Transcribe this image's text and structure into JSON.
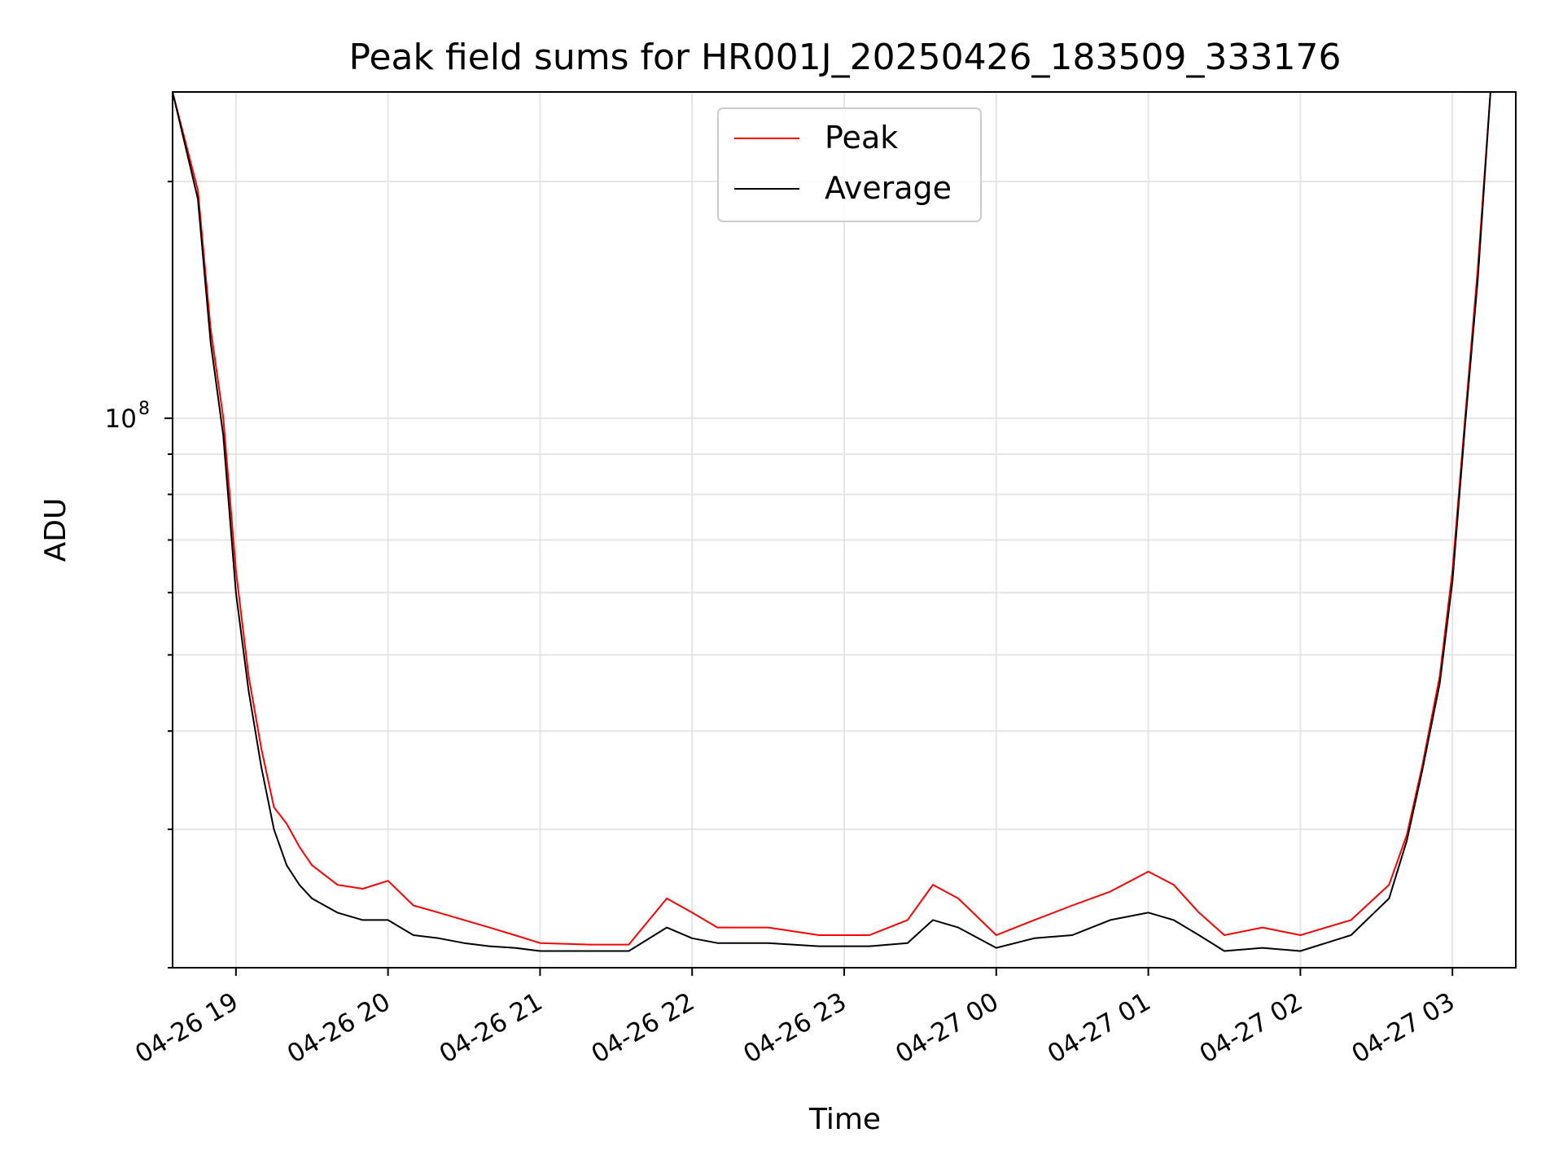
{
  "chart_data": {
    "type": "line",
    "title": "Peak field sums for HR001J_20250426_183509_333176",
    "xlabel": "Time",
    "ylabel": "ADU",
    "y_scale": "log",
    "grid": true,
    "legend_position": "top-center",
    "x_tick_labels": [
      "04-26 19",
      "04-26 20",
      "04-26 21",
      "04-26 22",
      "04-26 23",
      "04-27 00",
      "04-27 01",
      "04-27 02",
      "04-27 03"
    ],
    "y_tick_labels": [
      {
        "base": "10",
        "exponent": "8"
      }
    ],
    "xlim": [
      "2025-04-26 18:35",
      "2025-04-27 03:25"
    ],
    "ylim": [
      20000000.0,
      260000000.0
    ],
    "series": [
      {
        "name": "Peak",
        "color": "#ff0000",
        "x": [
          "2025-04-26 18:35",
          "2025-04-26 18:45",
          "2025-04-26 18:50",
          "2025-04-26 18:55",
          "2025-04-26 19:00",
          "2025-04-26 19:05",
          "2025-04-26 19:10",
          "2025-04-26 19:15",
          "2025-04-26 19:20",
          "2025-04-26 19:25",
          "2025-04-26 19:30",
          "2025-04-26 19:40",
          "2025-04-26 19:50",
          "2025-04-26 20:00",
          "2025-04-26 20:10",
          "2025-04-26 20:20",
          "2025-04-26 20:30",
          "2025-04-26 20:40",
          "2025-04-26 20:50",
          "2025-04-26 21:00",
          "2025-04-26 21:20",
          "2025-04-26 21:35",
          "2025-04-26 21:50",
          "2025-04-26 22:00",
          "2025-04-26 22:10",
          "2025-04-26 22:30",
          "2025-04-26 22:50",
          "2025-04-26 23:10",
          "2025-04-26 23:25",
          "2025-04-26 23:35",
          "2025-04-26 23:45",
          "2025-04-27 00:00",
          "2025-04-27 00:15",
          "2025-04-27 00:30",
          "2025-04-27 00:45",
          "2025-04-27 01:00",
          "2025-04-27 01:10",
          "2025-04-27 01:20",
          "2025-04-27 01:30",
          "2025-04-27 01:45",
          "2025-04-27 02:00",
          "2025-04-27 02:20",
          "2025-04-27 02:35",
          "2025-04-27 02:42",
          "2025-04-27 02:48",
          "2025-04-27 02:55",
          "2025-04-27 03:00",
          "2025-04-27 03:05",
          "2025-04-27 03:10",
          "2025-04-27 03:15"
        ],
        "y": [
          260000000.0,
          195000000.0,
          130000000.0,
          100000000.0,
          64000000.0,
          47000000.0,
          38000000.0,
          32000000.0,
          30500000.0,
          28500000.0,
          27000000.0,
          25500000.0,
          25200000.0,
          25800000.0,
          24000000.0,
          23500000.0,
          23000000.0,
          22500000.0,
          22000000.0,
          21500000.0,
          21400000.0,
          21400000.0,
          24500000.0,
          23500000.0,
          22500000.0,
          22500000.0,
          22000000.0,
          22000000.0,
          23000000.0,
          25500000.0,
          24500000.0,
          22000000.0,
          23000000.0,
          24000000.0,
          25000000.0,
          26500000.0,
          25500000.0,
          23500000.0,
          22000000.0,
          22500000.0,
          22000000.0,
          23000000.0,
          25500000.0,
          29500000.0,
          36000000.0,
          47000000.0,
          64000000.0,
          100000000.0,
          155000000.0,
          260000000.0
        ]
      },
      {
        "name": "Average",
        "color": "#000000",
        "x": [
          "2025-04-26 18:35",
          "2025-04-26 18:45",
          "2025-04-26 18:50",
          "2025-04-26 18:55",
          "2025-04-26 19:00",
          "2025-04-26 19:05",
          "2025-04-26 19:10",
          "2025-04-26 19:15",
          "2025-04-26 19:20",
          "2025-04-26 19:25",
          "2025-04-26 19:30",
          "2025-04-26 19:40",
          "2025-04-26 19:50",
          "2025-04-26 20:00",
          "2025-04-26 20:10",
          "2025-04-26 20:20",
          "2025-04-26 20:30",
          "2025-04-26 20:40",
          "2025-04-26 20:50",
          "2025-04-26 21:00",
          "2025-04-26 21:20",
          "2025-04-26 21:35",
          "2025-04-26 21:50",
          "2025-04-26 22:00",
          "2025-04-26 22:10",
          "2025-04-26 22:30",
          "2025-04-26 22:50",
          "2025-04-26 23:10",
          "2025-04-26 23:25",
          "2025-04-26 23:35",
          "2025-04-26 23:45",
          "2025-04-27 00:00",
          "2025-04-27 00:15",
          "2025-04-27 00:30",
          "2025-04-27 00:45",
          "2025-04-27 01:00",
          "2025-04-27 01:10",
          "2025-04-27 01:20",
          "2025-04-27 01:30",
          "2025-04-27 01:45",
          "2025-04-27 02:00",
          "2025-04-27 02:20",
          "2025-04-27 02:35",
          "2025-04-27 02:42",
          "2025-04-27 02:48",
          "2025-04-27 02:55",
          "2025-04-27 03:00",
          "2025-04-27 03:05",
          "2025-04-27 03:10",
          "2025-04-27 03:15"
        ],
        "y": [
          260000000.0,
          190000000.0,
          125000000.0,
          95000000.0,
          60000000.0,
          45000000.0,
          36000000.0,
          30000000.0,
          27000000.0,
          25500000.0,
          24500000.0,
          23500000.0,
          23000000.0,
          23000000.0,
          22000000.0,
          21800000.0,
          21500000.0,
          21300000.0,
          21200000.0,
          21000000.0,
          21000000.0,
          21000000.0,
          22500000.0,
          21800000.0,
          21500000.0,
          21500000.0,
          21300000.0,
          21300000.0,
          21500000.0,
          23000000.0,
          22500000.0,
          21200000.0,
          21800000.0,
          22000000.0,
          23000000.0,
          23500000.0,
          23000000.0,
          22000000.0,
          21000000.0,
          21200000.0,
          21000000.0,
          22000000.0,
          24500000.0,
          29000000.0,
          35500000.0,
          46000000.0,
          62000000.0,
          98000000.0,
          150000000.0,
          260000000.0
        ]
      }
    ]
  }
}
